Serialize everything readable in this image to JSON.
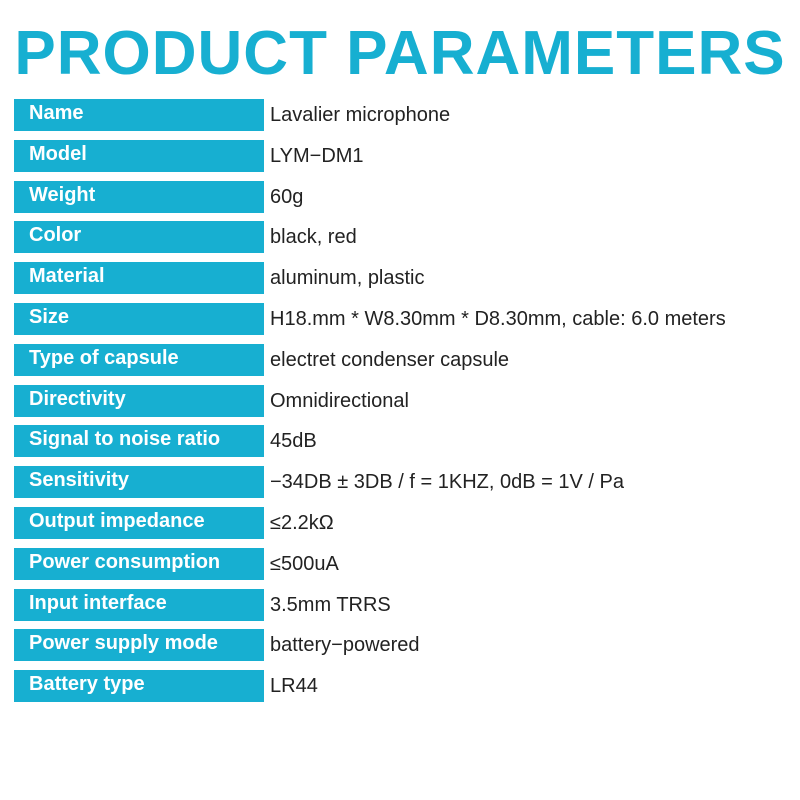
{
  "title": "PRODUCT PARAMETERS",
  "accent_color": "#17afd1",
  "params": [
    {
      "label": "Name",
      "value": "Lavalier microphone"
    },
    {
      "label": "Model",
      "value": "LYM−DM1"
    },
    {
      "label": "Weight",
      "value": "60g"
    },
    {
      "label": "Color",
      "value": "black, red"
    },
    {
      "label": "Material",
      "value": "aluminum, plastic"
    },
    {
      "label": "Size",
      "value": "H18.mm * W8.30mm * D8.30mm, cable: 6.0 meters"
    },
    {
      "label": "Type of capsule",
      "value": "electret condenser capsule"
    },
    {
      "label": "Directivity",
      "value": "Omnidirectional"
    },
    {
      "label": "Signal to noise ratio",
      "value": "45dB"
    },
    {
      "label": "Sensitivity",
      "value": "−34DB ± 3DB / f = 1KHZ, 0dB = 1V / Pa"
    },
    {
      "label": "Output impedance",
      "value": "≤2.2kΩ"
    },
    {
      "label": "Power consumption",
      "value": "≤500uA"
    },
    {
      "label": "Input interface",
      "value": "3.5mm TRRS"
    },
    {
      "label": "Power supply mode",
      "value": "battery−powered"
    },
    {
      "label": "Battery type",
      "value": "LR44"
    }
  ]
}
